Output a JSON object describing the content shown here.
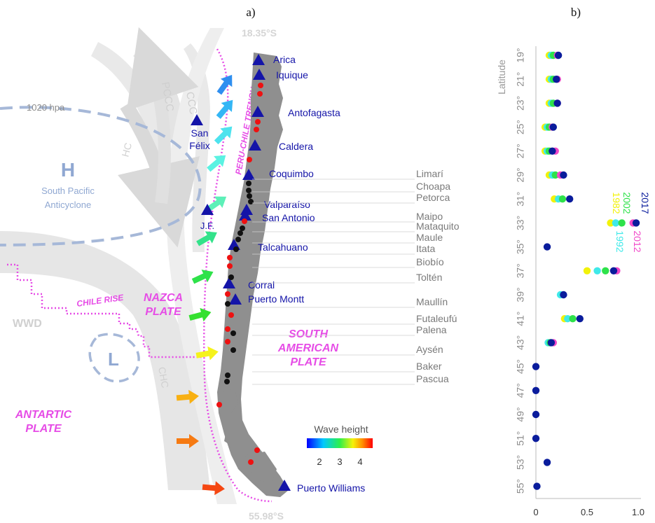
{
  "panels": {
    "a": "a)",
    "b": "b)"
  },
  "latitudes": {
    "north": "18.35°S",
    "south": "55.98°S"
  },
  "pressure": {
    "isobar": "1020 hpa",
    "high": "H",
    "high_label": [
      "South Pacific",
      "Anticyclone"
    ],
    "low": "L"
  },
  "currents": [
    "PCCC",
    "CCC",
    "HC",
    "CHC",
    "WWD"
  ],
  "plates": {
    "nazca": [
      "NAZCA",
      "PLATE"
    ],
    "south_american": [
      "SOUTH",
      "AMERICAN",
      "PLATE"
    ],
    "antarctic": [
      "ANTARTIC",
      "PLATE"
    ],
    "trench": "PERU-CHILE TRENCH",
    "rise": "CHILE RISE"
  },
  "stations": [
    {
      "name": "Arica"
    },
    {
      "name": "Iquique"
    },
    {
      "name": "Antofagasta"
    },
    {
      "name": "Caldera"
    },
    {
      "name": "Coquimbo"
    },
    {
      "name": "Valparaíso"
    },
    {
      "name": "San Antonio"
    },
    {
      "name": "Talcahuano"
    },
    {
      "name": "Corral"
    },
    {
      "name": "Puerto Montt"
    },
    {
      "name": "Puerto Williams"
    },
    {
      "name": "San Félix"
    },
    {
      "name": "J.F."
    }
  ],
  "rivers": [
    "Limarí",
    "Choapa",
    "Petorca",
    "Maipo",
    "Mataquito",
    "Maule",
    "Itata",
    "Biobío",
    "Toltén",
    "Maullín",
    "Futaleufú",
    "Palena",
    "Aysén",
    "Baker",
    "Pascua"
  ],
  "colorbar": {
    "title": "Wave height",
    "ticks": [
      "2",
      "3",
      "4"
    ]
  },
  "chart_data": {
    "type": "scatter",
    "title": "",
    "xlabel": "",
    "ylabel": "Latitude",
    "xlim": [
      0,
      1.0
    ],
    "x_ticks": [
      "0",
      "0.5",
      "1.0"
    ],
    "y_categories": [
      "19°",
      "21°",
      "23°",
      "25°",
      "27°",
      "29°",
      "31°",
      "33°",
      "35°",
      "37°",
      "39°",
      "41°",
      "43°",
      "45°",
      "47°",
      "49°",
      "51°",
      "53°",
      "55°"
    ],
    "series": [
      {
        "name": "1982",
        "color": "#f2f20a",
        "values": [
          0.13,
          0.13,
          0.13,
          0.09,
          0.09,
          0.13,
          0.18,
          0.73,
          null,
          0.5,
          null,
          0.28,
          null,
          null,
          null,
          null,
          null,
          null,
          null
        ]
      },
      {
        "name": "1992",
        "color": "#3fe9e9",
        "values": [
          0.15,
          0.15,
          0.15,
          0.11,
          0.11,
          0.16,
          0.22,
          0.78,
          null,
          0.6,
          0.24,
          0.31,
          0.12,
          null,
          null,
          null,
          null,
          null,
          null
        ]
      },
      {
        "name": "2002",
        "color": "#2ee24a",
        "values": [
          0.17,
          0.17,
          0.17,
          0.13,
          0.13,
          0.19,
          0.26,
          0.84,
          null,
          0.68,
          null,
          0.36,
          0.14,
          null,
          null,
          null,
          null,
          null,
          null
        ]
      },
      {
        "name": "2012",
        "color": "#f048c8",
        "values": [
          0.21,
          0.21,
          0.21,
          0.16,
          0.19,
          0.24,
          null,
          0.95,
          null,
          0.79,
          null,
          null,
          0.17,
          null,
          null,
          null,
          null,
          null,
          null
        ]
      },
      {
        "name": "2017",
        "color": "#0a1c9c",
        "values": [
          0.22,
          0.2,
          0.21,
          0.17,
          0.16,
          0.27,
          0.33,
          0.98,
          0.11,
          0.76,
          0.27,
          0.43,
          0.15,
          0.0,
          0.0,
          0.0,
          0.0,
          0.11,
          0.01
        ]
      }
    ]
  }
}
